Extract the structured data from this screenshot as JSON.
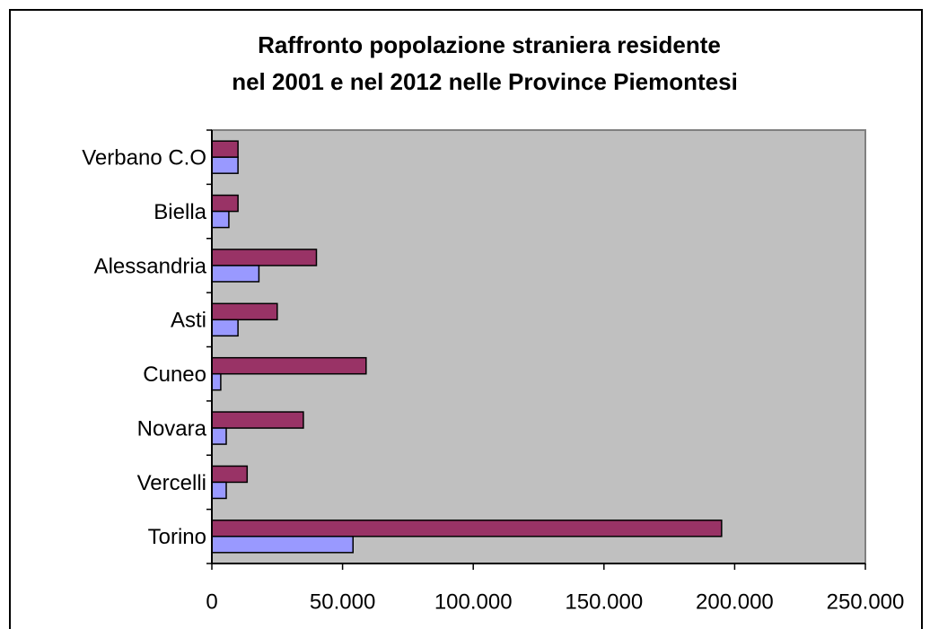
{
  "chart_data": {
    "type": "hbar",
    "title": [
      "Raffronto popolazione straniera residente",
      "nel 2001 e nel 2012 nelle Province Piemontesi"
    ],
    "categories": [
      "Verbano C.O",
      "Biella",
      "Alessandria",
      "Asti",
      "Cuneo",
      "Novara",
      "Vercelli",
      "Torino"
    ],
    "series": [
      {
        "color": "#993366",
        "values": [
          10000,
          10000,
          40000,
          25000,
          59000,
          35000,
          13500,
          195000
        ]
      },
      {
        "color": "#9999ff",
        "values": [
          10000,
          6500,
          18000,
          10000,
          3400,
          5500,
          5500,
          54000
        ]
      }
    ],
    "xlim": [
      0,
      250000
    ],
    "xticks": [
      0,
      {
        "value": 50000,
        "label": "50.000"
      },
      {
        "value": 100000,
        "label": "100.000"
      },
      {
        "value": 150000,
        "label": "150.000"
      },
      {
        "value": 200000,
        "label": "200.000"
      },
      {
        "value": 250000,
        "label": "250.000"
      }
    ],
    "plot_background": "#c0c0c0",
    "grid": false
  }
}
